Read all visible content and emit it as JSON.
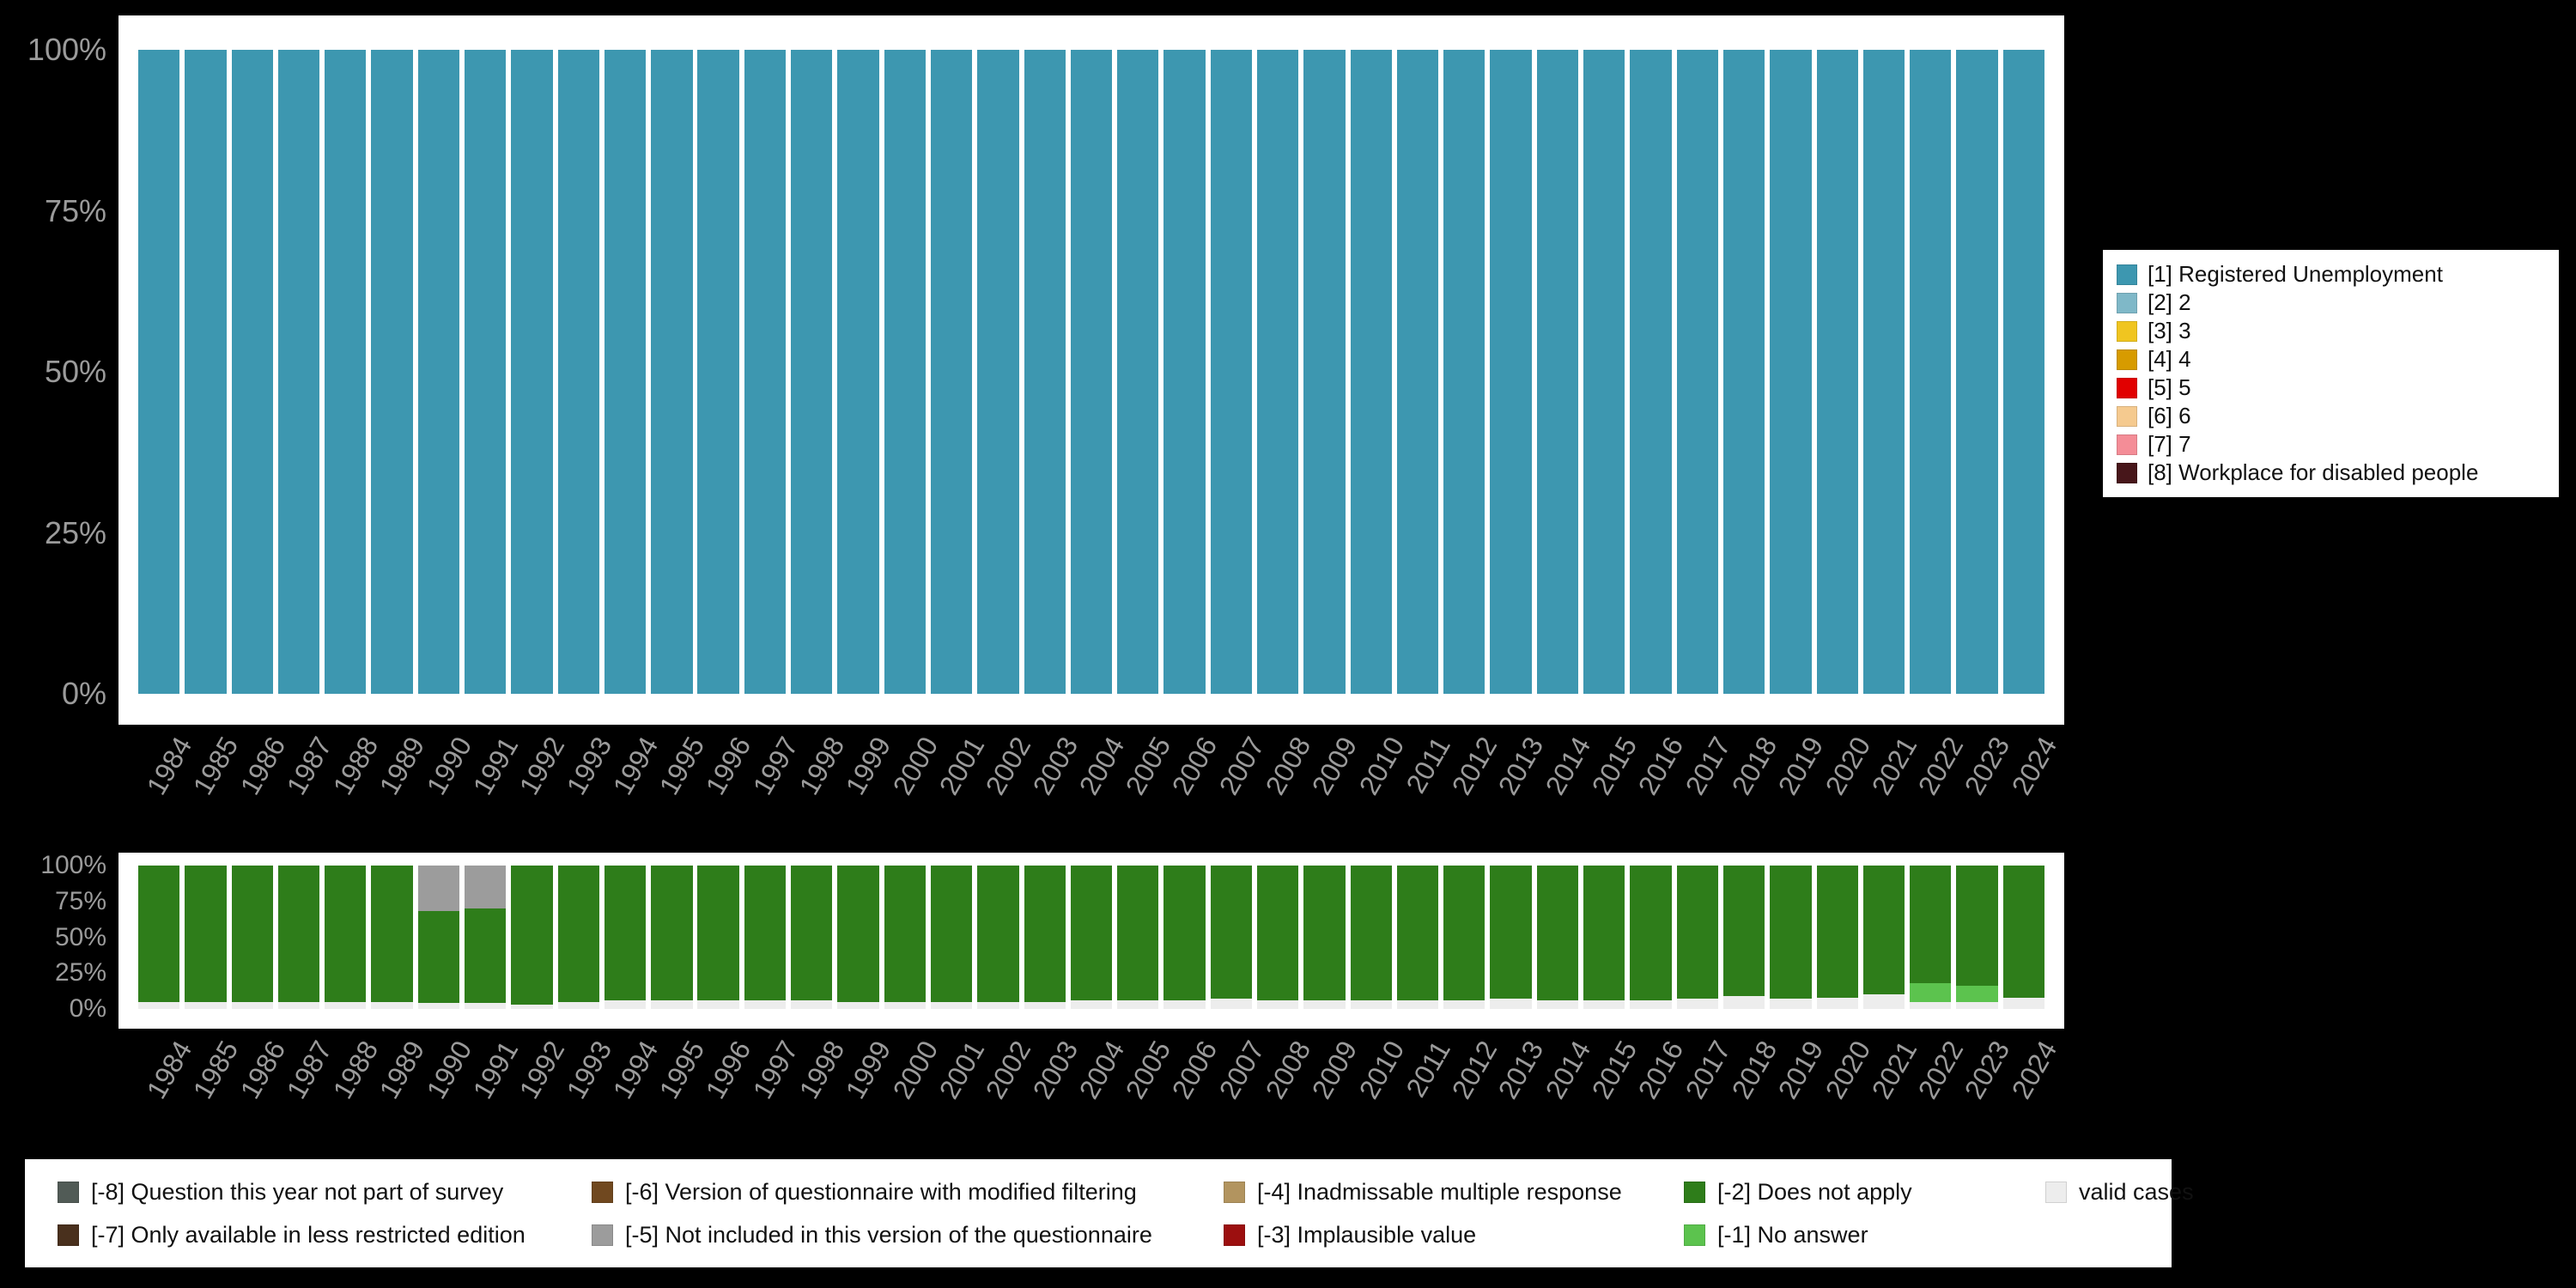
{
  "palette": {
    "c1": "#3d97b0",
    "c2": "#7fb8c8",
    "c3": "#f0c520",
    "c4": "#d79b00",
    "c5": "#e10000",
    "c6": "#f5ca8f",
    "c7": "#f48d97",
    "c8": "#47161a",
    "m8": "#515b56",
    "m7": "#49301d",
    "m6": "#70481f",
    "m5": "#9c9c9c",
    "m4": "#b2945f",
    "m3": "#9c0f0f",
    "m2": "#2e7d1a",
    "m1": "#5cc34e",
    "valid": "#ededed",
    "axis_text": "#9b9b9b",
    "panel_bg": "#ffffff",
    "page_bg": "#000000"
  },
  "axis": {
    "yticks": [
      "100%",
      "75%",
      "50%",
      "25%",
      "0%"
    ]
  },
  "chart_data": [
    {
      "type": "bar",
      "stacked": true,
      "unit": "percent",
      "title": "",
      "ylim": [
        0,
        100
      ],
      "yticks": [
        "100%",
        "75%",
        "50%",
        "25%",
        "0%"
      ],
      "legend_position": "right",
      "categories": [
        1984,
        1985,
        1986,
        1987,
        1988,
        1989,
        1990,
        1991,
        1992,
        1993,
        1994,
        1995,
        1996,
        1997,
        1998,
        1999,
        2000,
        2001,
        2002,
        2003,
        2004,
        2005,
        2006,
        2007,
        2008,
        2009,
        2010,
        2011,
        2012,
        2013,
        2014,
        2015,
        2016,
        2017,
        2018,
        2019,
        2020,
        2021,
        2022,
        2023,
        2024
      ],
      "series": [
        {
          "name": "[1] Registered Unemployment",
          "key": "c1",
          "values": [
            100,
            100,
            100,
            100,
            100,
            100,
            100,
            100,
            100,
            100,
            100,
            100,
            100,
            100,
            100,
            100,
            100,
            100,
            100,
            100,
            100,
            100,
            100,
            100,
            100,
            100,
            100,
            100,
            100,
            100,
            100,
            100,
            100,
            100,
            100,
            100,
            100,
            100,
            100,
            100,
            100
          ]
        }
      ]
    },
    {
      "type": "bar",
      "stacked": true,
      "unit": "percent",
      "title": "",
      "ylim": [
        0,
        100
      ],
      "yticks": [
        "100%",
        "75%",
        "50%",
        "25%",
        "0%"
      ],
      "legend_position": "bottom",
      "categories": [
        1984,
        1985,
        1986,
        1987,
        1988,
        1989,
        1990,
        1991,
        1992,
        1993,
        1994,
        1995,
        1996,
        1997,
        1998,
        1999,
        2000,
        2001,
        2002,
        2003,
        2004,
        2005,
        2006,
        2007,
        2008,
        2009,
        2010,
        2011,
        2012,
        2013,
        2014,
        2015,
        2016,
        2017,
        2018,
        2019,
        2020,
        2021,
        2022,
        2023,
        2024
      ],
      "series": [
        {
          "name": "valid cases",
          "key": "valid",
          "values": [
            5,
            5,
            5,
            5,
            5,
            5,
            4,
            4,
            3,
            5,
            6,
            6,
            6,
            6,
            6,
            5,
            5,
            5,
            5,
            5,
            6,
            6,
            6,
            7,
            6,
            6,
            6,
            6,
            6,
            7,
            6,
            6,
            6,
            7,
            9,
            7,
            8,
            10,
            5,
            5,
            8
          ]
        },
        {
          "name": "[-1] No answer",
          "key": "m1",
          "values": [
            0,
            0,
            0,
            0,
            0,
            0,
            0,
            0,
            0,
            0,
            0,
            0,
            0,
            0,
            0,
            0,
            0,
            0,
            0,
            0,
            0,
            0,
            0,
            0,
            0,
            0,
            0,
            0,
            0,
            0,
            0,
            0,
            0,
            0,
            0,
            0,
            0,
            0,
            13,
            11,
            0
          ]
        },
        {
          "name": "[-2] Does not apply",
          "key": "m2",
          "values": [
            95,
            95,
            95,
            95,
            95,
            95,
            64,
            66,
            97,
            95,
            94,
            94,
            94,
            94,
            94,
            95,
            95,
            95,
            95,
            95,
            94,
            94,
            94,
            93,
            94,
            94,
            94,
            94,
            94,
            93,
            94,
            94,
            94,
            93,
            91,
            93,
            92,
            90,
            82,
            84,
            92
          ]
        },
        {
          "name": "[-5] Not included in this version of the questionnaire",
          "key": "m5",
          "values": [
            0,
            0,
            0,
            0,
            0,
            0,
            32,
            30,
            0,
            0,
            0,
            0,
            0,
            0,
            0,
            0,
            0,
            0,
            0,
            0,
            0,
            0,
            0,
            0,
            0,
            0,
            0,
            0,
            0,
            0,
            0,
            0,
            0,
            0,
            0,
            0,
            0,
            0,
            0,
            0,
            0
          ]
        }
      ]
    }
  ],
  "legend_categories": {
    "items": [
      {
        "key": "c1",
        "label": "[1] Registered Unemployment"
      },
      {
        "key": "c2",
        "label": "[2] 2"
      },
      {
        "key": "c3",
        "label": "[3] 3"
      },
      {
        "key": "c4",
        "label": "[4] 4"
      },
      {
        "key": "c5",
        "label": "[5] 5"
      },
      {
        "key": "c6",
        "label": "[6] 6"
      },
      {
        "key": "c7",
        "label": "[7] 7"
      },
      {
        "key": "c8",
        "label": "[8] Workplace for disabled people"
      }
    ]
  },
  "legend_missing": {
    "items": [
      {
        "key": "m8",
        "label": "[-8] Question this year not part of survey"
      },
      {
        "key": "m6",
        "label": "[-6] Version of questionnaire with modified filtering"
      },
      {
        "key": "m4",
        "label": "[-4] Inadmissable multiple response"
      },
      {
        "key": "m2",
        "label": "[-2] Does not apply"
      },
      {
        "key": "valid",
        "label": "valid cases"
      },
      {
        "key": "m7",
        "label": "[-7] Only available in less restricted edition"
      },
      {
        "key": "m5",
        "label": "[-5] Not included in this version of the questionnaire"
      },
      {
        "key": "m3",
        "label": "[-3] Implausible value"
      },
      {
        "key": "m1",
        "label": "[-1] No answer"
      }
    ]
  }
}
